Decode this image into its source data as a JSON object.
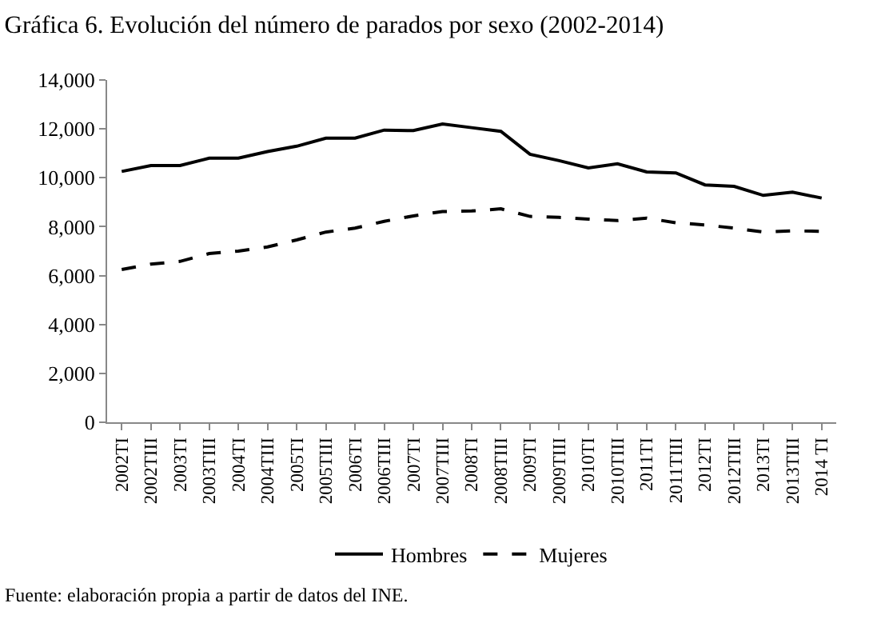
{
  "chart_data": {
    "type": "line",
    "title": "Gráfica 6. Evolución del número de parados por sexo (2002-2014)",
    "categories": [
      "2002TI",
      "2002TIII",
      "2003TI",
      "2003TIII",
      "2004TI",
      "2004TIII",
      "2005TI",
      "2005TIII",
      "2006TI",
      "2006TIII",
      "2007TI",
      "2007TIII",
      "2008TI",
      "2008TIII",
      "2009TI",
      "2009TIII",
      "2010TI",
      "2010TIII",
      "2011TI",
      "2011TIII",
      "2012TI",
      "2012TIII",
      "2013TI",
      "2013TIII",
      "2014 TI"
    ],
    "series": [
      {
        "name": "Hombres",
        "color": "#000000",
        "line_style": "solid",
        "values": [
          10260,
          10500,
          10500,
          10800,
          10800,
          11070,
          11290,
          11620,
          11620,
          11950,
          11930,
          12200,
          12050,
          11900,
          10960,
          10700,
          10400,
          10570,
          10240,
          10200,
          9710,
          9650,
          9280,
          9410,
          9170
        ]
      },
      {
        "name": "Mujeres",
        "color": "#000000",
        "line_style": "dashed",
        "values": [
          6250,
          6470,
          6580,
          6900,
          7000,
          7170,
          7460,
          7780,
          7940,
          8220,
          8440,
          8620,
          8640,
          8730,
          8420,
          8380,
          8310,
          8250,
          8350,
          8160,
          8070,
          7940,
          7780,
          7830,
          7810
        ]
      }
    ],
    "ylim": [
      0,
      14000
    ],
    "yticks": [
      0,
      {
        "value": 2000,
        "label": "2,000"
      },
      {
        "value": 4000,
        "label": "4,000"
      },
      {
        "value": 6000,
        "label": "6,000"
      },
      {
        "value": 8000,
        "label": "8,000"
      },
      {
        "value": 10000,
        "label": "10,000"
      },
      {
        "value": 12000,
        "label": "12,000"
      },
      {
        "value": 14000,
        "label": "14,000"
      }
    ],
    "grid": false,
    "legend": "bottom",
    "marker": "none",
    "annotations": [
      "Fuente: elaboración propia a partir de datos del INE."
    ]
  }
}
